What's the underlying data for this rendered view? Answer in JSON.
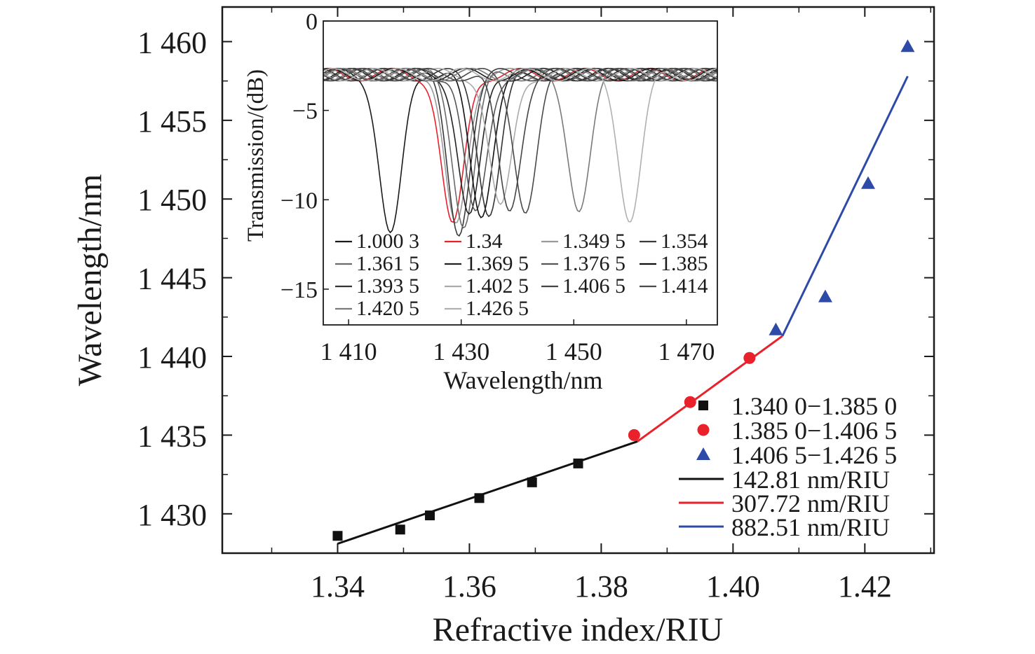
{
  "chart_data": [
    {
      "type": "scatter",
      "xlabel": "Refractive index/RIU",
      "ylabel": "Wavelength/nm",
      "xlim": [
        1.3225,
        1.4305
      ],
      "ylim": [
        1427.5,
        1462.2
      ],
      "xticks": [
        1.34,
        1.36,
        1.38,
        1.4,
        1.42
      ],
      "xtick_labels": [
        "1.34",
        "1.36",
        "1.38",
        "1.40",
        "1.42"
      ],
      "yticks": [
        1430,
        1435,
        1440,
        1445,
        1450,
        1455,
        1460
      ],
      "ytick_labels": [
        "1 430",
        "1 435",
        "1 440",
        "1 445",
        "1 450",
        "1 455",
        "1 460"
      ],
      "legend_position": "bottom-right",
      "series": [
        {
          "name": "1.340 0−1.385 0",
          "marker": "square",
          "color": "#111111",
          "x": [
            1.34,
            1.3495,
            1.354,
            1.3615,
            1.3695,
            1.3765
          ],
          "y": [
            1428.6,
            1429.0,
            1429.9,
            1431.0,
            1432.0,
            1433.2
          ]
        },
        {
          "name": "1.385 0−1.406 5",
          "marker": "circle",
          "color": "#e8212b",
          "x": [
            1.385,
            1.3935,
            1.4025
          ],
          "y": [
            1435.0,
            1437.1,
            1439.9
          ]
        },
        {
          "name": "1.406 5−1.426 5",
          "marker": "triangle",
          "color": "#2e4aa8",
          "x": [
            1.4065,
            1.414,
            1.4205,
            1.4265
          ],
          "y": [
            1441.7,
            1443.8,
            1451.0,
            1459.7
          ]
        }
      ],
      "fits": [
        {
          "name": "142.81 nm/RIU",
          "color": "#111111",
          "x": [
            1.34,
            1.3855
          ],
          "y": [
            1428.1,
            1434.6
          ]
        },
        {
          "name": "307.72 nm/RIU",
          "color": "#e8212b",
          "x": [
            1.3855,
            1.4075
          ],
          "y": [
            1434.6,
            1441.3
          ]
        },
        {
          "name": "882.51 nm/RIU",
          "color": "#2e4aa8",
          "x": [
            1.4075,
            1.4265
          ],
          "y": [
            1441.3,
            1457.8
          ]
        }
      ]
    },
    {
      "type": "line",
      "xlabel": "Wavelength/nm",
      "ylabel": "Transmission/(dB)",
      "xlim": [
        1405.5,
        1475.5
      ],
      "ylim": [
        -17,
        0
      ],
      "xticks": [
        1410,
        1430,
        1450,
        1470
      ],
      "xtick_labels": [
        "1 410",
        "1 430",
        "1 450",
        "1 470"
      ],
      "yticks": [
        0,
        -5,
        -10,
        -15
      ],
      "ytick_labels": [
        "0",
        "−5",
        "−10",
        "−15"
      ],
      "baseline_db": -3.0,
      "series": [
        {
          "name": "1.000 3",
          "color": "#1a1a1a",
          "dip_nm": 1417.5,
          "depth_db": -12.0
        },
        {
          "name": "1.34",
          "color": "#e8212b",
          "dip_nm": 1428.5,
          "depth_db": -11.6
        },
        {
          "name": "1.349 5",
          "color": "#9a9a9a",
          "dip_nm": 1429.0,
          "depth_db": -11.5
        },
        {
          "name": "1.354",
          "color": "#3a3a3a",
          "dip_nm": 1429.5,
          "depth_db": -11.8
        },
        {
          "name": "1.361 5",
          "color": "#6a6a6a",
          "dip_nm": 1430.5,
          "depth_db": -11.3
        },
        {
          "name": "1.369 5",
          "color": "#222222",
          "dip_nm": 1431.5,
          "depth_db": -11.0
        },
        {
          "name": "1.376 5",
          "color": "#555555",
          "dip_nm": 1432.5,
          "depth_db": -10.9
        },
        {
          "name": "1.385",
          "color": "#111111",
          "dip_nm": 1433.5,
          "depth_db": -10.8
        },
        {
          "name": "1.393 5",
          "color": "#333333",
          "dip_nm": 1435.0,
          "depth_db": -10.7
        },
        {
          "name": "1.402 5",
          "color": "#aaaaaa",
          "dip_nm": 1437.0,
          "depth_db": -10.6
        },
        {
          "name": "1.406 5",
          "color": "#444444",
          "dip_nm": 1438.5,
          "depth_db": -10.6
        },
        {
          "name": "1.414",
          "color": "#4a4a4a",
          "dip_nm": 1441.5,
          "depth_db": -10.6
        },
        {
          "name": "1.420 5",
          "color": "#7a7a7a",
          "dip_nm": 1451.0,
          "depth_db": -10.5
        },
        {
          "name": "1.426 5",
          "color": "#b0b0b0",
          "dip_nm": 1460.0,
          "depth_db": -11.0
        }
      ]
    }
  ]
}
